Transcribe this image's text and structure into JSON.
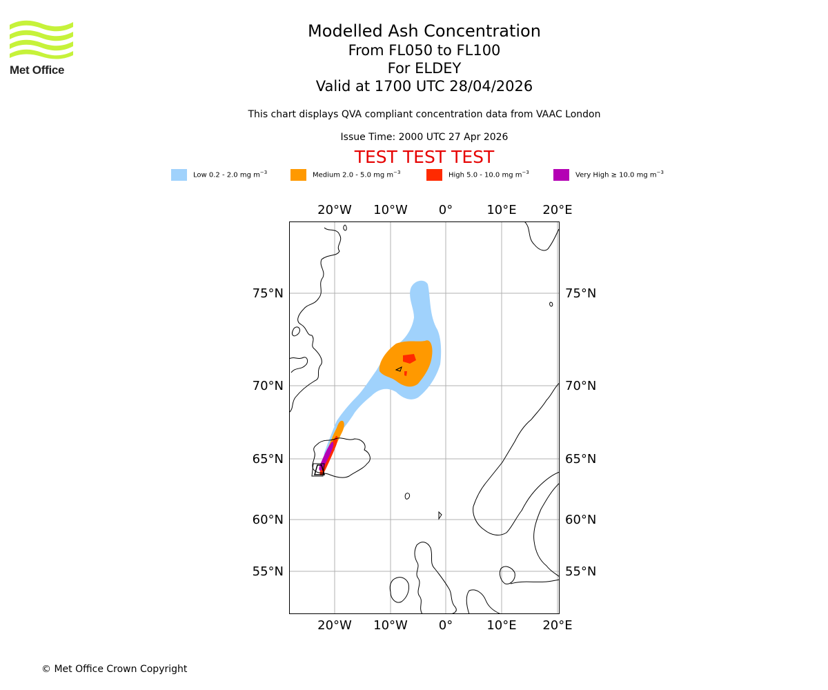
{
  "logo": {
    "text": "Met Office",
    "icon": "met-office-waves-logo",
    "color": "#c6f23a"
  },
  "title": {
    "main": "Modelled Ash Concentration",
    "levels": "From FL050 to FL100",
    "volcano": "For ELDEY",
    "valid": "Valid at 1700 UTC 28/04/2026"
  },
  "subtitle": "This chart displays QVA compliant concentration data from VAAC London",
  "issue_time": "Issue Time: 2000 UTC 27 Apr 2026",
  "test_banner": "TEST TEST TEST",
  "legend": [
    {
      "label": "Low 0.2 - 2.0 mg m",
      "exp": "−3",
      "color": "#a0d2fc"
    },
    {
      "label": "Medium 2.0 - 5.0 mg m",
      "exp": "−3",
      "color": "#ff9900"
    },
    {
      "label": "High 5.0 - 10.0 mg m",
      "exp": "−3",
      "color": "#ff2a00"
    },
    {
      "label": "Very High ≥ 10.0 mg m",
      "exp": "−3",
      "color": "#b400b4"
    }
  ],
  "map": {
    "lon_labels": [
      "20°W",
      "10°W",
      "0°",
      "10°E",
      "20°E"
    ],
    "lat_labels": [
      "75°N",
      "70°N",
      "65°N",
      "60°N",
      "55°N"
    ],
    "gridline_color": "#b0b0b0"
  },
  "copyright": "© Met Office Crown Copyright"
}
